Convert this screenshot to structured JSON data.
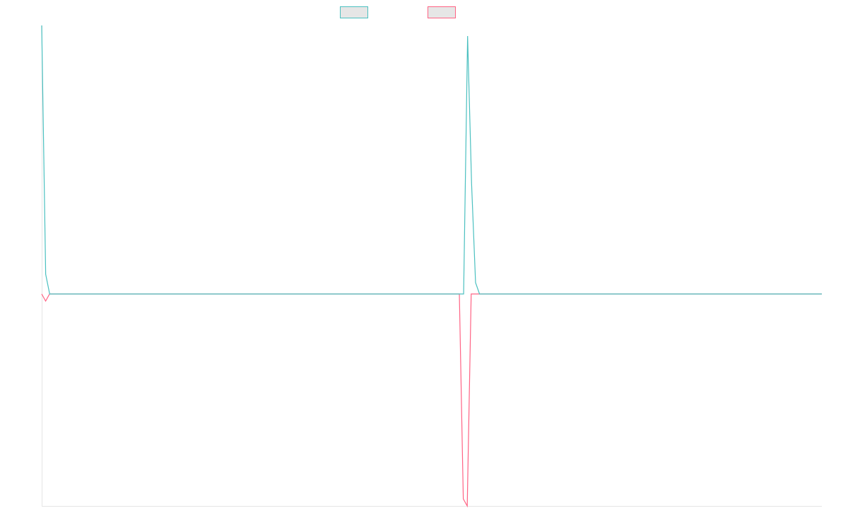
{
  "chart_data": {
    "type": "line",
    "ylim": [
      -300,
      380
    ],
    "series": [
      {
        "color": "#4bc0c0",
        "values": [
          380,
          28,
          0,
          0,
          0,
          0,
          0,
          0,
          0,
          0,
          0,
          0,
          0,
          0,
          0,
          0,
          0,
          0,
          0,
          0,
          0,
          0,
          0,
          0,
          0,
          0,
          0,
          0,
          0,
          0,
          0,
          0,
          0,
          0,
          0,
          0,
          0,
          0,
          0,
          0,
          0,
          0,
          0,
          0,
          0,
          0,
          0,
          0,
          0,
          0,
          0,
          0,
          0,
          0,
          0,
          0,
          0,
          0,
          0,
          0,
          0,
          0,
          0,
          0,
          0,
          0,
          0,
          0,
          0,
          0,
          0,
          0,
          0,
          0,
          0,
          0,
          0,
          0,
          0,
          0,
          0,
          0,
          0,
          0,
          0,
          0,
          0,
          0,
          0,
          0,
          0,
          0,
          0,
          0,
          0,
          0,
          0,
          0,
          0,
          0,
          0,
          0,
          0,
          0,
          0,
          0,
          0,
          365,
          156,
          16,
          0,
          0,
          0,
          0,
          0,
          0,
          0,
          0,
          0,
          0,
          0,
          0,
          0,
          0,
          0,
          0,
          0,
          0,
          0,
          0,
          0,
          0,
          0,
          0,
          0,
          0,
          0,
          0,
          0,
          0,
          0,
          0,
          0,
          0,
          0,
          0,
          0,
          0,
          0,
          0,
          0,
          0,
          0,
          0,
          0,
          0,
          0,
          0,
          0,
          0,
          0,
          0,
          0,
          0,
          0,
          0,
          0,
          0,
          0,
          0,
          0,
          0,
          0,
          0,
          0,
          0,
          0,
          0,
          0,
          0,
          0,
          0,
          0,
          0,
          0,
          0,
          0,
          0,
          0,
          0,
          0,
          0,
          0,
          0,
          0,
          0,
          0
        ]
      },
      {
        "color": "#ff6384",
        "values": [
          0,
          -10,
          0,
          0,
          0,
          0,
          0,
          0,
          0,
          0,
          0,
          0,
          0,
          0,
          0,
          0,
          0,
          0,
          0,
          0,
          0,
          0,
          0,
          0,
          0,
          0,
          0,
          0,
          0,
          0,
          0,
          0,
          0,
          0,
          0,
          0,
          0,
          0,
          0,
          0,
          0,
          0,
          0,
          0,
          0,
          0,
          0,
          0,
          0,
          0,
          0,
          0,
          0,
          0,
          0,
          0,
          0,
          0,
          0,
          0,
          0,
          0,
          0,
          0,
          0,
          0,
          0,
          0,
          0,
          0,
          0,
          0,
          0,
          0,
          0,
          0,
          0,
          0,
          0,
          0,
          0,
          0,
          0,
          0,
          0,
          0,
          0,
          0,
          0,
          0,
          0,
          0,
          0,
          0,
          0,
          0,
          0,
          0,
          0,
          0,
          0,
          0,
          0,
          0,
          0,
          0,
          0,
          -290,
          -300,
          0,
          0,
          0,
          0,
          0,
          0,
          0,
          0,
          0,
          0,
          0,
          0,
          0,
          0,
          0,
          0,
          0,
          0,
          0,
          0,
          0,
          0,
          0,
          0,
          0,
          0,
          0,
          0,
          0,
          0,
          0,
          0,
          0,
          0,
          0,
          0,
          0,
          0,
          0,
          0,
          0,
          0,
          0,
          0,
          0,
          0,
          0,
          0,
          0,
          0,
          0,
          0,
          0,
          0,
          0,
          0,
          0,
          0,
          0,
          0,
          0,
          0,
          0,
          0,
          0,
          0,
          0,
          0,
          0,
          0,
          0,
          0,
          0,
          0,
          0,
          0,
          0,
          0,
          0,
          0,
          0,
          0,
          0,
          0,
          0,
          0,
          0,
          0,
          0,
          0
        ]
      }
    ]
  }
}
